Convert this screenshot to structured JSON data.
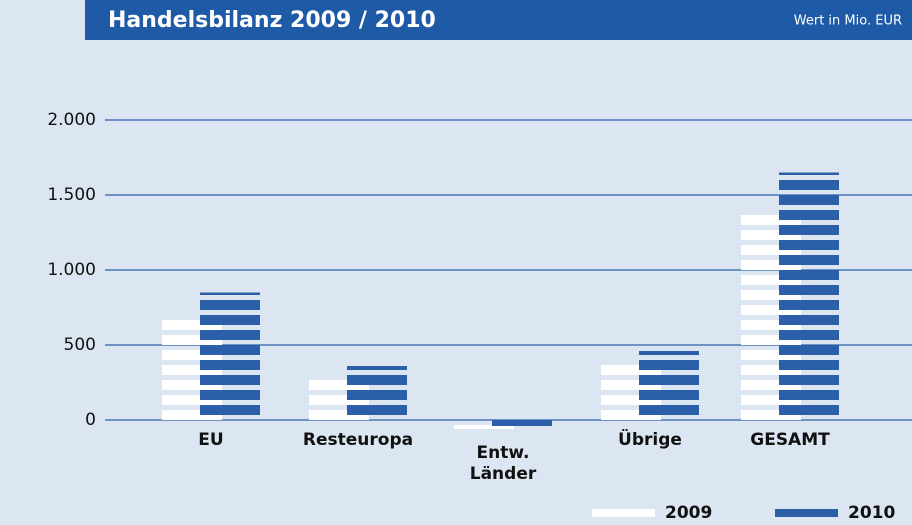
{
  "chart_data": {
    "type": "bar",
    "title": "Handelsbilanz 2009 / 2010",
    "subtitle": "Wert in Mio. EUR",
    "categories": [
      "EU",
      "Resteuropa",
      "Entw.\nLänder",
      "Übrige",
      "GESAMT"
    ],
    "series": [
      {
        "name": "2009",
        "color": "#ffffff",
        "values": [
          680,
          280,
          -60,
          380,
          1380
        ]
      },
      {
        "name": "2010",
        "color": "#2b5fa9",
        "values": [
          850,
          360,
          -40,
          460,
          1650
        ]
      }
    ],
    "ylim": [
      -150,
      2300
    ],
    "yticks": [
      0,
      500,
      {
        "value": 1000,
        "label": "1.000"
      },
      {
        "value": 1500,
        "label": "1.500"
      },
      {
        "value": 2000,
        "label": "2.000"
      }
    ],
    "grid": true,
    "legend": "bottom-right"
  }
}
